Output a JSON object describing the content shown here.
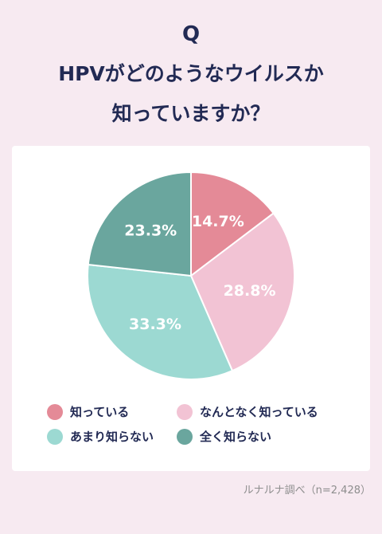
{
  "header": {
    "q_label": "Q",
    "title_line1": "HPVがどのようなウイルスか",
    "title_line2": "知っていますか？"
  },
  "chart_data": {
    "type": "pie",
    "categories": [
      "知っている",
      "なんとなく知っている",
      "あまり知らない",
      "全く知らない"
    ],
    "values": [
      14.7,
      28.8,
      33.3,
      23.3
    ],
    "labels": [
      "14.7%",
      "28.8%",
      "33.3%",
      "23.3%"
    ],
    "colors": [
      "#e48a97",
      "#f2c3d4",
      "#9cd9d2",
      "#6aa69e"
    ],
    "start_angle": "12 o'clock",
    "direction": "clockwise",
    "legend_position": "bottom"
  },
  "footer": {
    "source": "ルナルナ調べ（n=2,428）"
  }
}
